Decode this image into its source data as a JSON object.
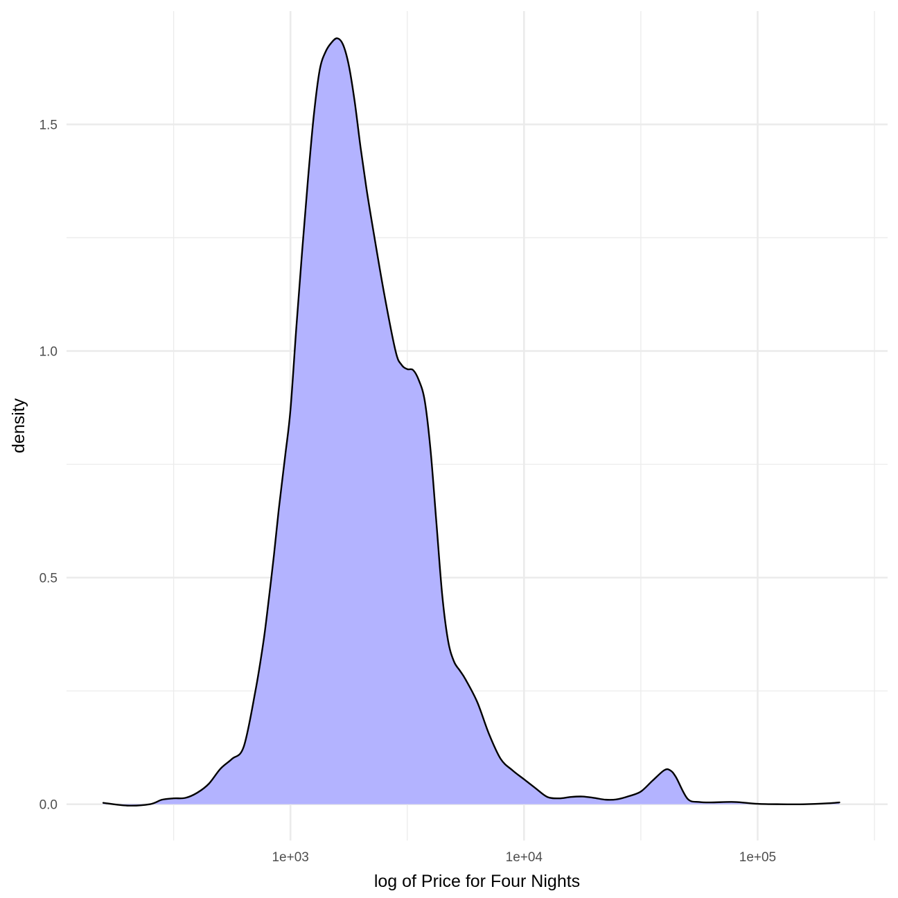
{
  "chart_data": {
    "type": "area",
    "title": "",
    "xlabel": "log of Price for Four Nights",
    "ylabel": "density",
    "x_scale": "log10",
    "xlim": [
      110,
      360000
    ],
    "ylim": [
      -0.08,
      1.75
    ],
    "x_ticks": [
      {
        "value": 1000,
        "label": "1e+03"
      },
      {
        "value": 10000,
        "label": "1e+04"
      },
      {
        "value": 100000,
        "label": "1e+05"
      }
    ],
    "x_minor_ticks": [
      316.23,
      3162.28,
      31622.78,
      316227.77
    ],
    "y_ticks": [
      {
        "value": 0.0,
        "label": "0.0"
      },
      {
        "value": 0.5,
        "label": "0.5"
      },
      {
        "value": 1.0,
        "label": "1.0"
      },
      {
        "value": 1.5,
        "label": "1.5"
      }
    ],
    "y_minor_ticks": [
      0.25,
      0.75,
      1.25
    ],
    "grid": true,
    "fill_color": "#b3b3ff",
    "line_color": "#000000",
    "series": [
      {
        "x": [
          158,
          200,
          250,
          282,
          316,
          355,
          398,
          447,
          501,
          562,
          631,
          708,
          762,
          794,
          850,
          891,
          950,
          1000,
          1059,
          1122,
          1189,
          1259,
          1334,
          1413,
          1496,
          1585,
          1679,
          1778,
          1884,
          1995,
          2113,
          2239,
          2512,
          2818,
          2985,
          3162,
          3350,
          3548,
          3758,
          3981,
          4217,
          4467,
          4732,
          5012,
          5309,
          5623,
          6310,
          7079,
          7943,
          8913,
          10000,
          11220,
          12589,
          14125,
          15849,
          17783,
          19953,
          22387,
          25119,
          28184,
          31623,
          35481,
          39811,
          42170,
          44668,
          50119,
          56234,
          63096,
          79433,
          100000,
          125893,
          158489,
          199526,
          223872
        ],
        "y": [
          0.003,
          -0.003,
          0.0,
          0.01,
          0.013,
          0.014,
          0.025,
          0.045,
          0.078,
          0.1,
          0.127,
          0.25,
          0.35,
          0.42,
          0.55,
          0.65,
          0.77,
          0.87,
          1.05,
          1.22,
          1.38,
          1.52,
          1.62,
          1.66,
          1.68,
          1.69,
          1.676,
          1.63,
          1.55,
          1.45,
          1.36,
          1.28,
          1.13,
          1.0,
          0.97,
          0.96,
          0.958,
          0.935,
          0.89,
          0.78,
          0.62,
          0.46,
          0.36,
          0.315,
          0.295,
          0.275,
          0.225,
          0.155,
          0.1,
          0.075,
          0.055,
          0.035,
          0.016,
          0.013,
          0.016,
          0.017,
          0.014,
          0.01,
          0.011,
          0.018,
          0.028,
          0.052,
          0.075,
          0.075,
          0.06,
          0.012,
          0.005,
          0.004,
          0.005,
          0.001,
          0.0,
          0.0,
          0.002,
          0.004
        ]
      }
    ]
  }
}
